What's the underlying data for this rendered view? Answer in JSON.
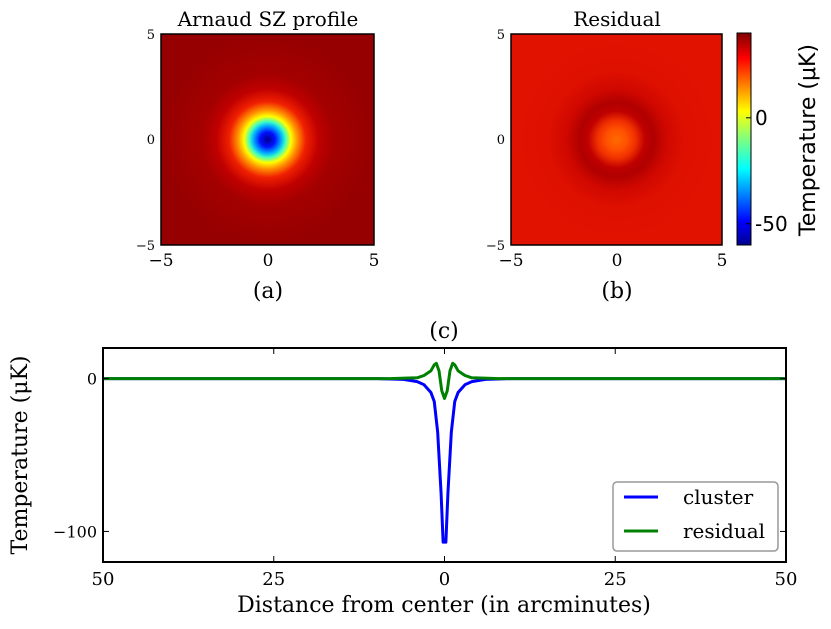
{
  "chart_data": [
    {
      "type": "heatmap",
      "panel_label": "(a)",
      "title": "Arnaud SZ profile",
      "xlim": [
        -5,
        5
      ],
      "ylim": [
        -5,
        5
      ],
      "x_ticks": [
        "−5",
        "0",
        "5"
      ],
      "y_ticks": [
        "5",
        "0",
        "−5"
      ],
      "description_values": {
        "center_temperature": -60,
        "background_temperature": 40,
        "core_radius": 0.9
      }
    },
    {
      "type": "heatmap",
      "panel_label": "(b)",
      "title": "Residual",
      "xlim": [
        -5,
        5
      ],
      "ylim": [
        -5,
        5
      ],
      "x_ticks": [
        "−5",
        "0",
        "5"
      ],
      "y_ticks": [
        "5",
        "0",
        "−5"
      ],
      "colorbar": {
        "label": "Temperature (μK)",
        "range": [
          -60,
          40
        ],
        "ticks": [
          0,
          -50
        ],
        "tick_labels": [
          "0",
          "-50"
        ]
      }
    },
    {
      "type": "line",
      "panel_label": "(c)",
      "title": "(c)",
      "xlabel": "Distance from center (in arcminutes)",
      "ylabel": "Temperature (μK)",
      "xlim": [
        -50,
        50
      ],
      "ylim": [
        -120,
        20
      ],
      "x_ticks": [
        -50,
        -25,
        0,
        25,
        50
      ],
      "x_tick_labels": [
        "50",
        "25",
        "0",
        "25",
        "50"
      ],
      "y_ticks": [
        0,
        -100
      ],
      "y_tick_labels": [
        "0",
        "−100"
      ],
      "legend": {
        "location": "lower-right"
      },
      "series": [
        {
          "name": "cluster",
          "color": "#0000ff",
          "points": [
            [
              -50,
              0
            ],
            [
              -10,
              0
            ],
            [
              -6,
              -0.5
            ],
            [
              -4,
              -2
            ],
            [
              -3,
              -4
            ],
            [
              -2,
              -9
            ],
            [
              -1.5,
              -15
            ],
            [
              -1,
              -35
            ],
            [
              -0.5,
              -75
            ],
            [
              -0.2,
              -107
            ],
            [
              0,
              -107
            ],
            [
              0.2,
              -107
            ],
            [
              0.5,
              -75
            ],
            [
              1,
              -35
            ],
            [
              1.5,
              -15
            ],
            [
              2,
              -9
            ],
            [
              3,
              -4
            ],
            [
              4,
              -2
            ],
            [
              6,
              -0.5
            ],
            [
              10,
              0
            ],
            [
              50,
              0
            ]
          ]
        },
        {
          "name": "residual",
          "color": "#008000",
          "points": [
            [
              -50,
              0
            ],
            [
              -8,
              0
            ],
            [
              -4,
              0.5
            ],
            [
              -3,
              2
            ],
            [
              -2,
              5
            ],
            [
              -1.5,
              9
            ],
            [
              -1.2,
              10
            ],
            [
              -0.8,
              5
            ],
            [
              -0.4,
              -8
            ],
            [
              0,
              -13
            ],
            [
              0.4,
              -8
            ],
            [
              0.8,
              5
            ],
            [
              1.2,
              10
            ],
            [
              1.5,
              9
            ],
            [
              2,
              5
            ],
            [
              3,
              2
            ],
            [
              4,
              0.5
            ],
            [
              8,
              0
            ],
            [
              50,
              0
            ]
          ]
        }
      ]
    }
  ]
}
